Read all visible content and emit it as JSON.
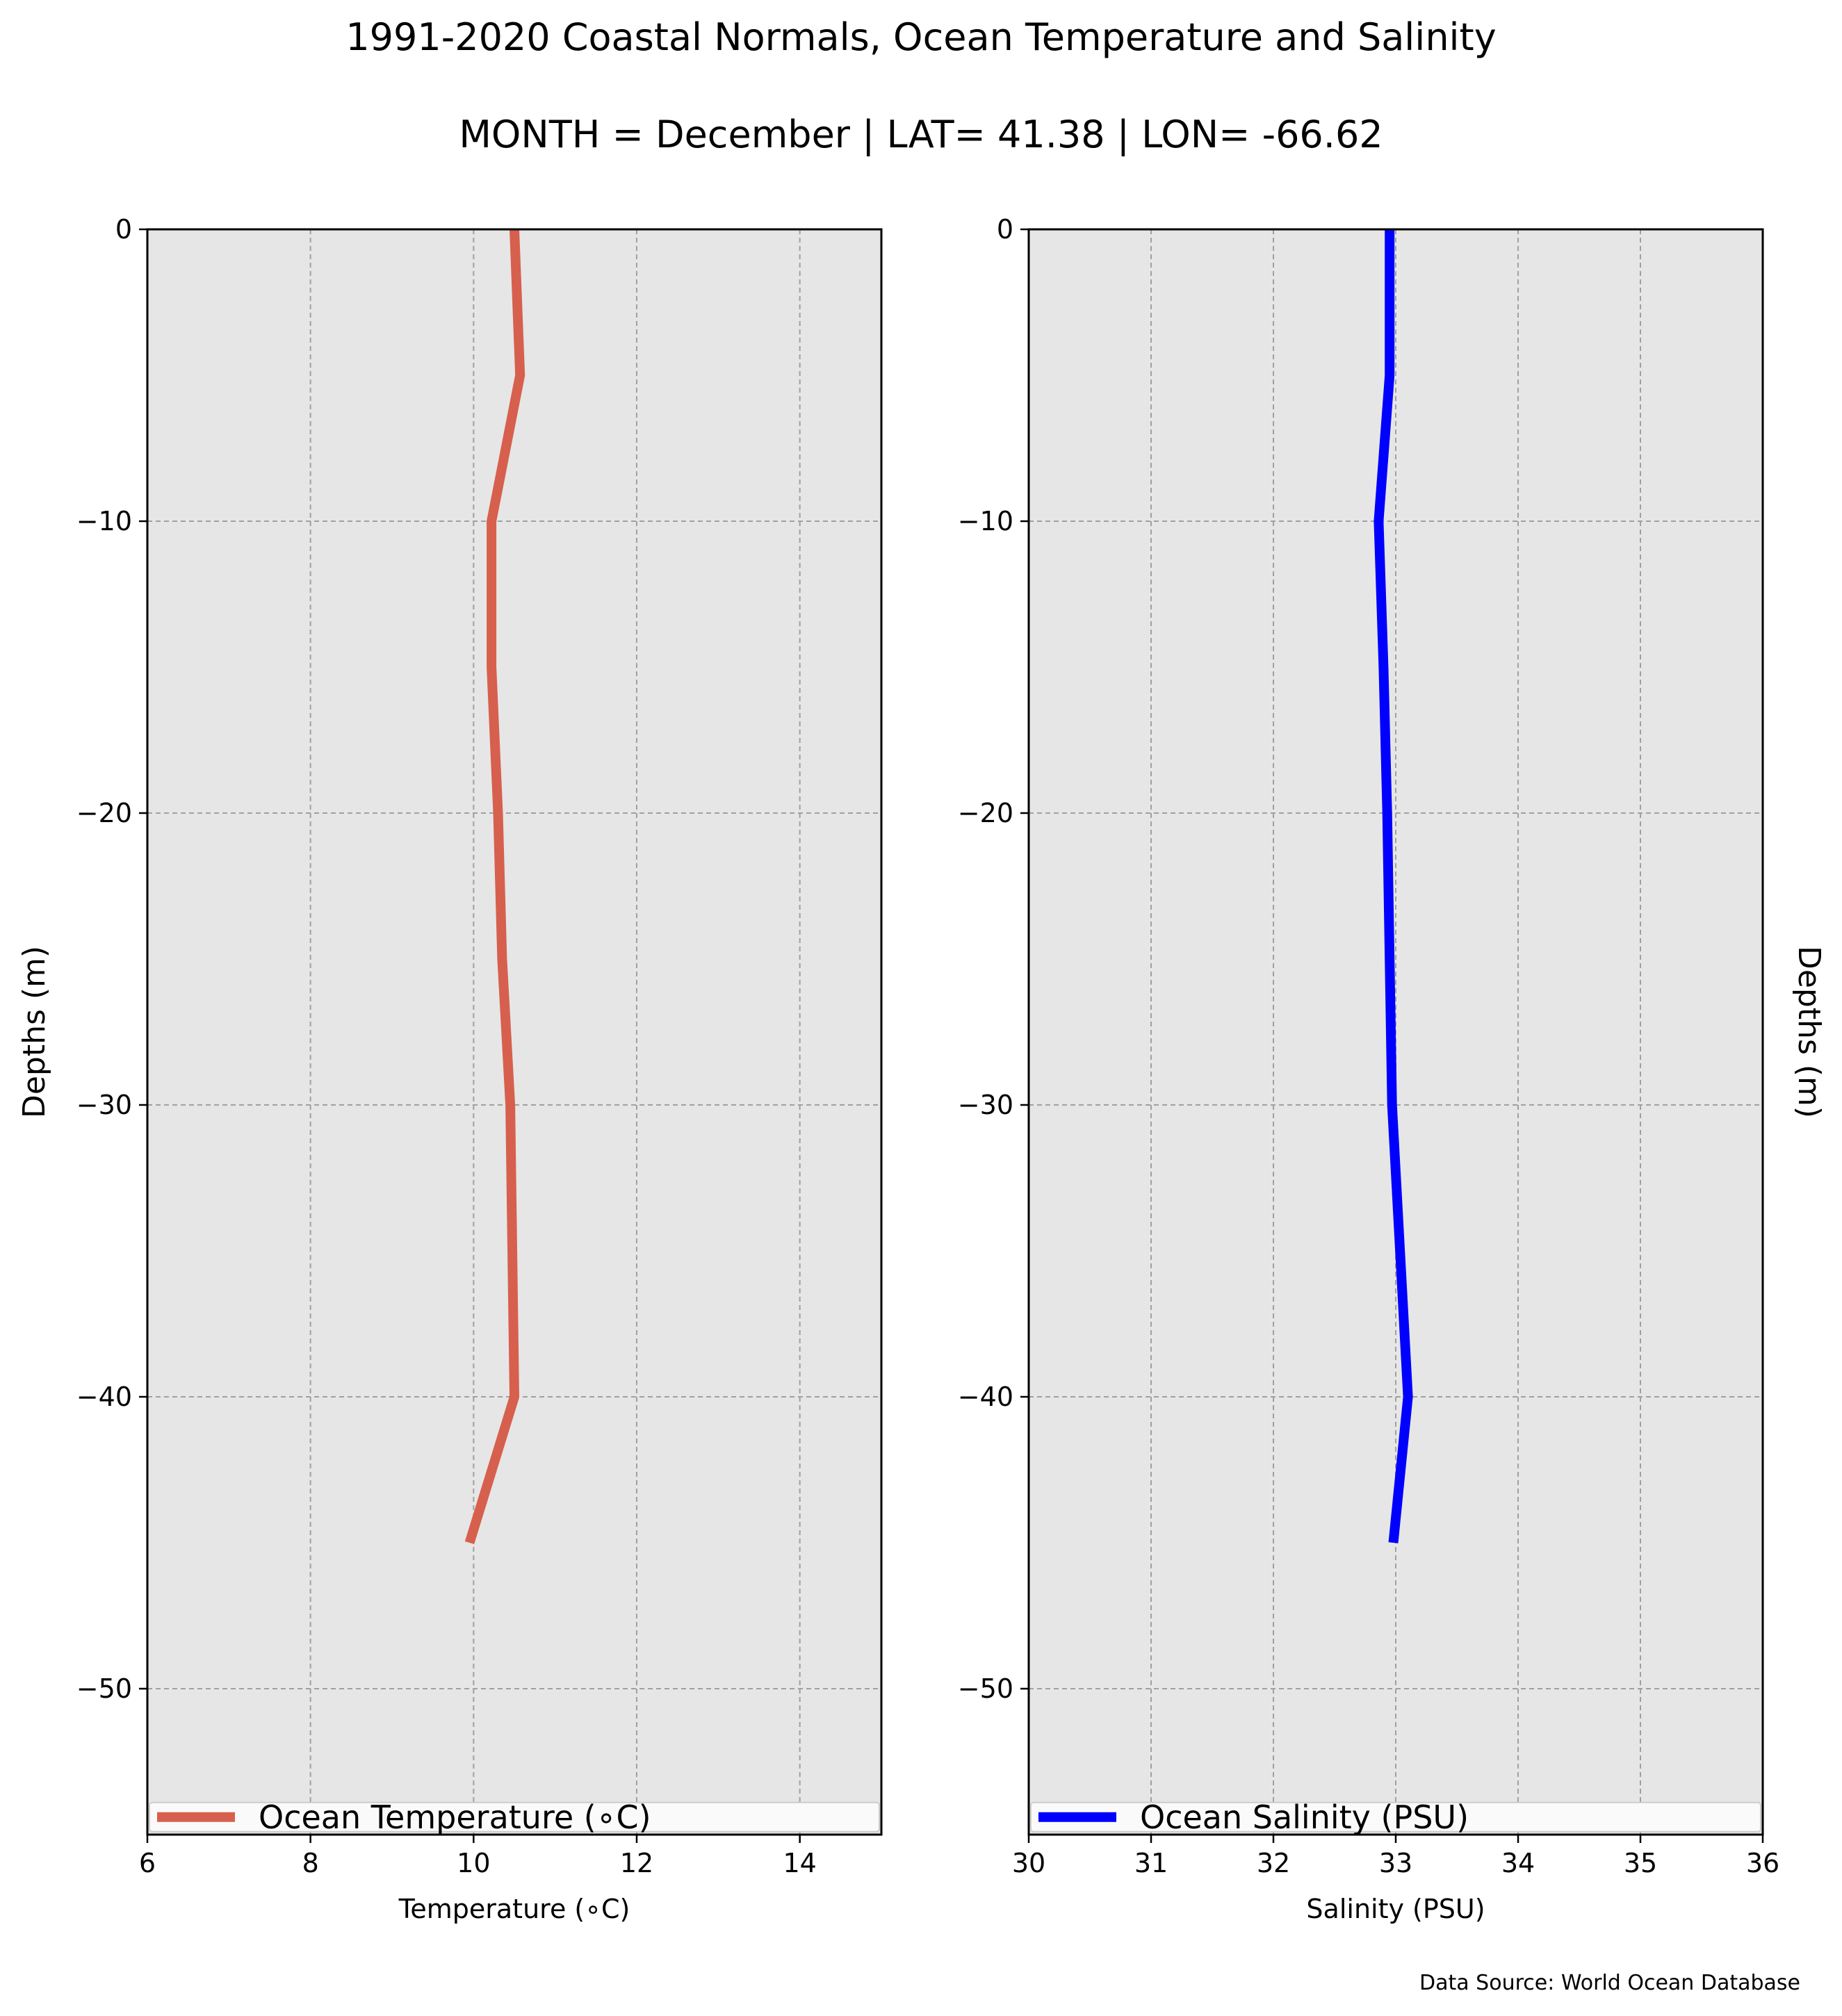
{
  "figure": {
    "title": "1991-2020 Coastal Normals, Ocean Temperature and Salinity",
    "subtitle": "MONTH = December | LAT= 41.38 | LON= -66.62",
    "source_note": "Data Source: World Ocean Database"
  },
  "chart_data": [
    {
      "type": "line",
      "xlabel": "Temperature (∘C)",
      "ylabel": "Depths (m)",
      "xlim": [
        6,
        15
      ],
      "ylim": [
        -55,
        0
      ],
      "x_ticks": [
        6,
        8,
        10,
        12,
        14
      ],
      "y_ticks": [
        0,
        -10,
        -20,
        -30,
        -40,
        -50
      ],
      "grid": true,
      "legend_position": "bottom",
      "background": "#e6e6e6",
      "series": [
        {
          "name": "Ocean Temperature (∘C)",
          "color": "#d6604d",
          "x": [
            10.5,
            10.57,
            10.22,
            10.22,
            10.3,
            10.35,
            10.45,
            10.5,
            9.95
          ],
          "y": [
            0,
            -5,
            -10,
            -15,
            -20,
            -25,
            -30,
            -40,
            -45
          ]
        }
      ]
    },
    {
      "type": "line",
      "xlabel": "Salinity (PSU)",
      "ylabel": "Depths (m)",
      "xlim": [
        30,
        36
      ],
      "ylim": [
        -55,
        0
      ],
      "x_ticks": [
        30,
        31,
        32,
        33,
        34,
        35,
        36
      ],
      "y_ticks": [
        0,
        -10,
        -20,
        -30,
        -40,
        -50
      ],
      "grid": true,
      "legend_position": "bottom",
      "background": "#e6e6e6",
      "series": [
        {
          "name": "Ocean Salinity (PSU)",
          "color": "#0000ff",
          "x": [
            32.95,
            32.95,
            32.86,
            32.9,
            32.93,
            32.95,
            32.97,
            33.1,
            32.98
          ],
          "y": [
            0,
            -5,
            -10,
            -15,
            -20,
            -25,
            -30,
            -40,
            -45
          ]
        }
      ]
    }
  ]
}
